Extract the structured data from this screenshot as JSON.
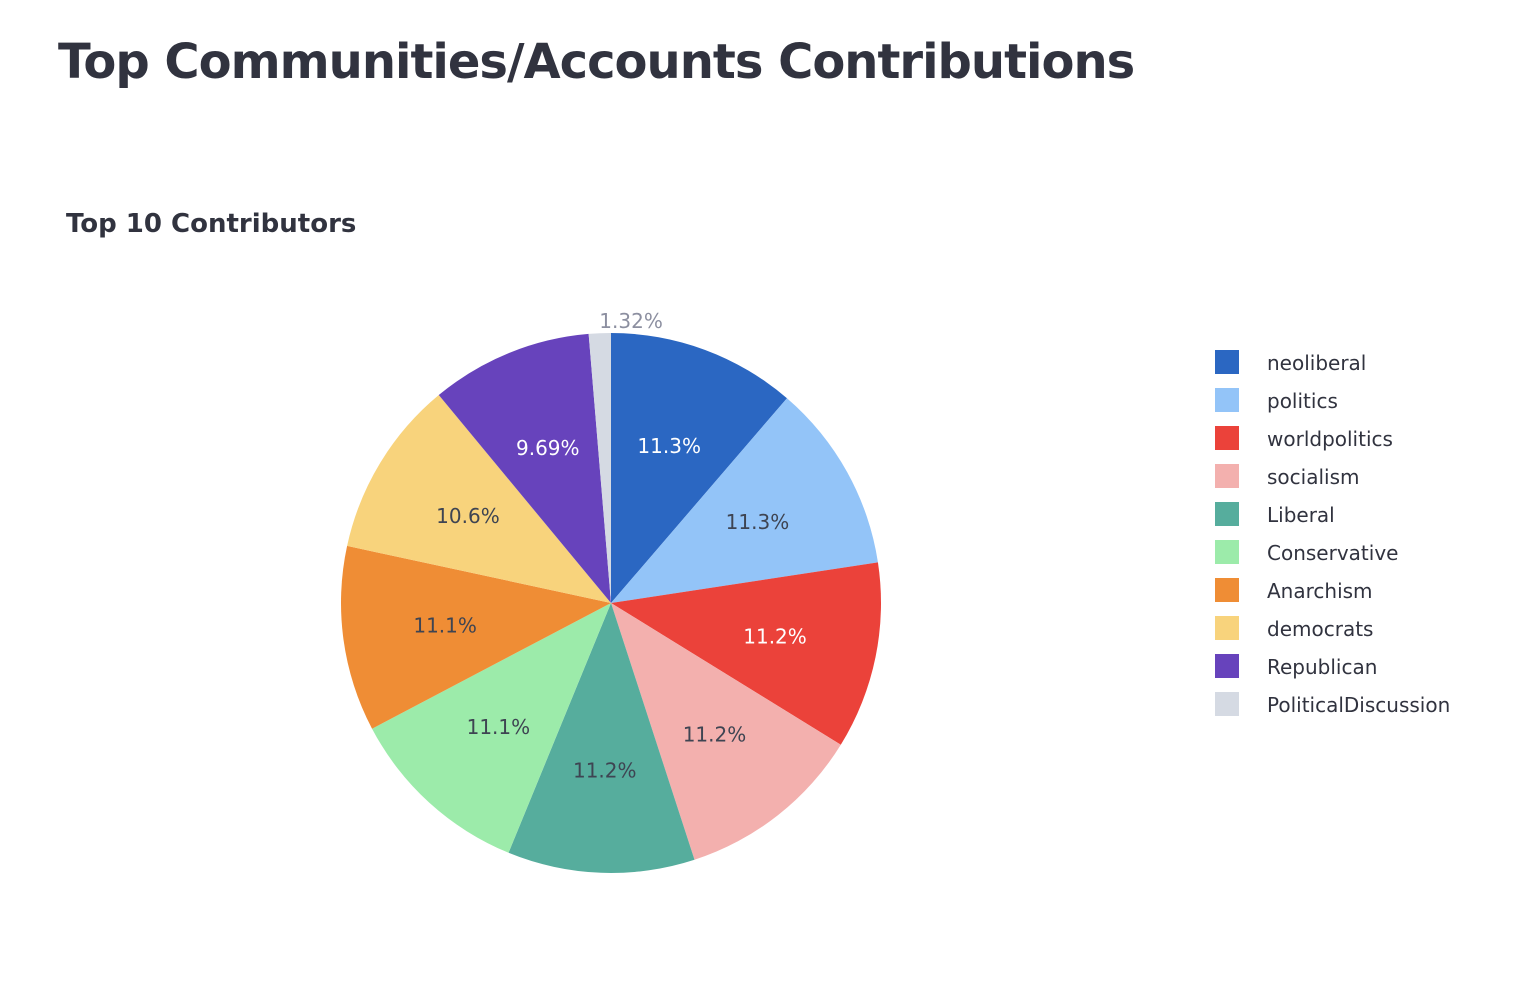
{
  "page": {
    "title": "Top Communities/Accounts Contributions"
  },
  "chart_data": {
    "type": "pie",
    "title": "Top 10 Contributors",
    "labels": [
      "neoliberal",
      "politics",
      "worldpolitics",
      "socialism",
      "Liberal",
      "Conservative",
      "Anarchism",
      "democrats",
      "Republican",
      "PoliticalDiscussion"
    ],
    "values": [
      11.3,
      11.3,
      11.2,
      11.2,
      11.2,
      11.1,
      11.1,
      10.6,
      9.69,
      1.32
    ],
    "text_labels": [
      "11.3%",
      "11.3%",
      "11.2%",
      "11.2%",
      "11.2%",
      "11.1%",
      "11.1%",
      "10.6%",
      "9.69%",
      "1.32%"
    ],
    "colors": [
      "#2b67c2",
      "#93c4f8",
      "#eb423a",
      "#f3b0ae",
      "#56ad9d",
      "#9cebaa",
      "#ef8d35",
      "#f8d37c",
      "#6743bc",
      "#d5dae3"
    ],
    "label_colors": [
      "#ffffff",
      "#3e4452",
      "#ffffff",
      "#3e4452",
      "#3e4452",
      "#3e4452",
      "#3e4452",
      "#3e4452",
      "#ffffff",
      "#8c8fa0"
    ],
    "direction": "counterclockwise",
    "start": "12 o'clock",
    "legend_position": "right"
  }
}
